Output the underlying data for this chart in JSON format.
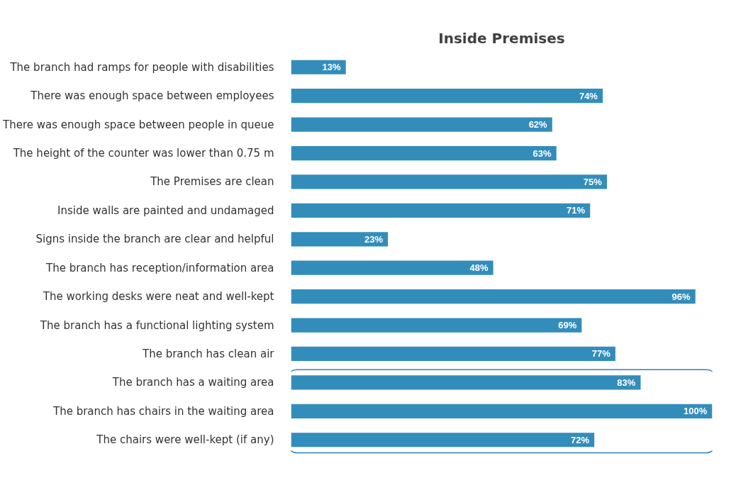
{
  "chart_data": {
    "type": "bar",
    "orientation": "horizontal",
    "title": "Inside Premises",
    "categories": [
      "The branch had ramps for people with disabilities",
      "There was enough space between employees",
      "There was enough space between people in queue",
      "The height of the counter was lower than 0.75 m",
      "The Premises are clean",
      "Inside walls are painted and undamaged",
      "Signs inside the branch are clear and helpful",
      "The branch has reception/information area",
      "The working desks were neat and well-kept",
      "The branch has a functional lighting system",
      "The branch has clean air",
      "The branch has a waiting area",
      "The branch has chairs in the waiting area",
      "The chairs were well-kept (if any)"
    ],
    "values": [
      13,
      74,
      62,
      63,
      75,
      71,
      23,
      48,
      96,
      69,
      77,
      83,
      100,
      72
    ],
    "value_labels": [
      "13%",
      "74%",
      "62%",
      "63%",
      "75%",
      "71%",
      "23%",
      "48%",
      "96%",
      "69%",
      "77%",
      "83%",
      "100%",
      "72%"
    ],
    "color": "#338dbb",
    "tick_labels": "y",
    "grid": false
  }
}
